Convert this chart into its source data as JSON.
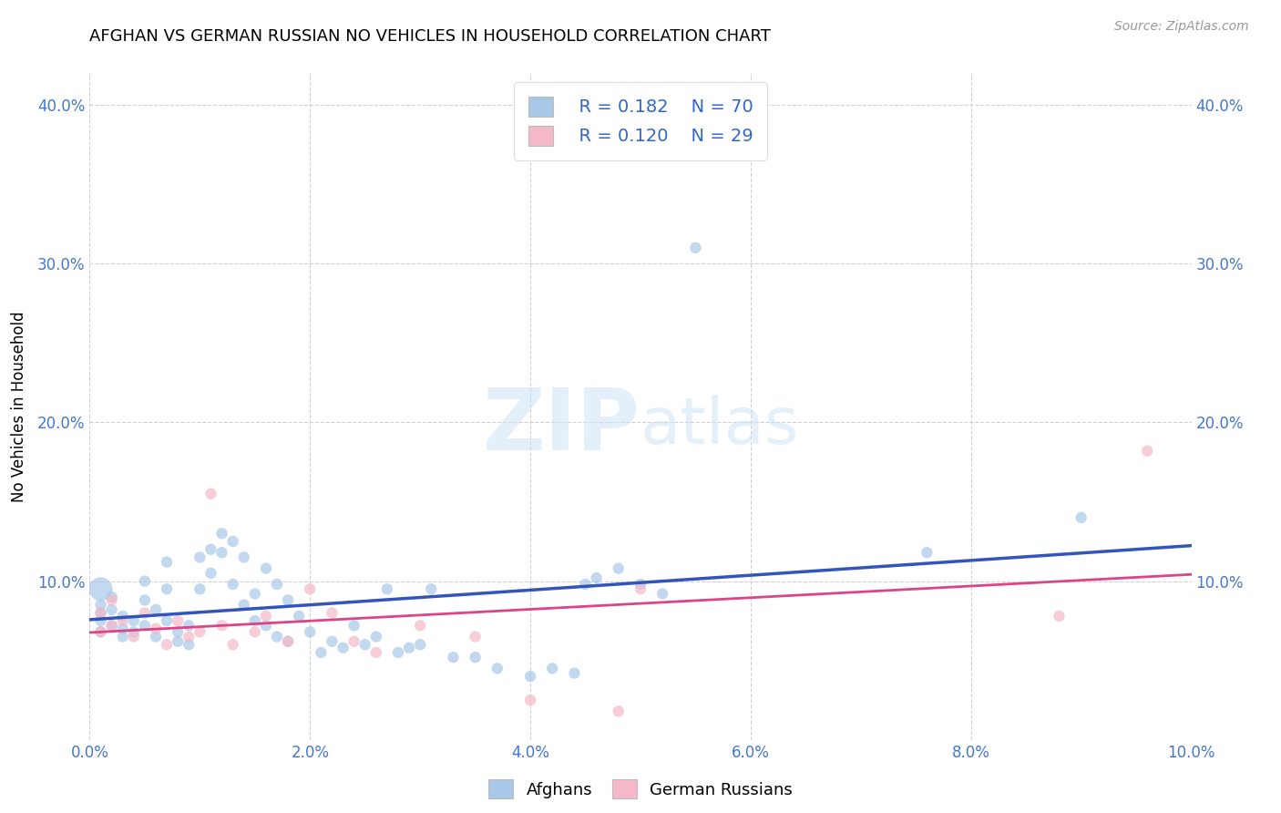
{
  "title": "AFGHAN VS GERMAN RUSSIAN NO VEHICLES IN HOUSEHOLD CORRELATION CHART",
  "source": "Source: ZipAtlas.com",
  "ylabel": "No Vehicles in Household",
  "xlim": [
    0.0,
    0.1
  ],
  "ylim": [
    0.0,
    0.42
  ],
  "x_ticks": [
    0.0,
    0.02,
    0.04,
    0.06,
    0.08,
    0.1
  ],
  "x_tick_labels": [
    "0.0%",
    "2.0%",
    "4.0%",
    "6.0%",
    "8.0%",
    "10.0%"
  ],
  "y_ticks": [
    0.1,
    0.2,
    0.3,
    0.4
  ],
  "y_tick_labels": [
    "10.0%",
    "20.0%",
    "30.0%",
    "40.0%"
  ],
  "legend_r1": "R = 0.182",
  "legend_n1": "N = 70",
  "legend_r2": "R = 0.120",
  "legend_n2": "N = 29",
  "afghans_color": "#a8c8e8",
  "german_russians_color": "#f5b8c8",
  "afghans_line_color": "#3355bb",
  "german_russians_line_color": "#dd4488",
  "background_color": "#ffffff",
  "afghans_x": [
    0.001,
    0.001,
    0.001,
    0.001,
    0.001,
    0.002,
    0.002,
    0.002,
    0.003,
    0.003,
    0.003,
    0.004,
    0.004,
    0.005,
    0.005,
    0.005,
    0.006,
    0.006,
    0.007,
    0.007,
    0.007,
    0.008,
    0.008,
    0.009,
    0.009,
    0.01,
    0.01,
    0.011,
    0.011,
    0.012,
    0.012,
    0.013,
    0.013,
    0.014,
    0.014,
    0.015,
    0.015,
    0.016,
    0.016,
    0.017,
    0.017,
    0.018,
    0.018,
    0.019,
    0.02,
    0.021,
    0.022,
    0.023,
    0.024,
    0.025,
    0.026,
    0.027,
    0.028,
    0.029,
    0.03,
    0.031,
    0.033,
    0.035,
    0.037,
    0.04,
    0.042,
    0.044,
    0.045,
    0.046,
    0.048,
    0.05,
    0.052,
    0.055,
    0.076,
    0.09
  ],
  "afghans_y": [
    0.095,
    0.085,
    0.08,
    0.075,
    0.068,
    0.09,
    0.082,
    0.072,
    0.078,
    0.07,
    0.065,
    0.075,
    0.068,
    0.1,
    0.088,
    0.072,
    0.082,
    0.065,
    0.112,
    0.095,
    0.075,
    0.068,
    0.062,
    0.072,
    0.06,
    0.115,
    0.095,
    0.12,
    0.105,
    0.13,
    0.118,
    0.125,
    0.098,
    0.115,
    0.085,
    0.092,
    0.075,
    0.108,
    0.072,
    0.098,
    0.065,
    0.088,
    0.062,
    0.078,
    0.068,
    0.055,
    0.062,
    0.058,
    0.072,
    0.06,
    0.065,
    0.095,
    0.055,
    0.058,
    0.06,
    0.095,
    0.052,
    0.052,
    0.045,
    0.04,
    0.045,
    0.042,
    0.098,
    0.102,
    0.108,
    0.098,
    0.092,
    0.31,
    0.118,
    0.14
  ],
  "afghans_sizes": [
    350,
    80,
    80,
    80,
    80,
    80,
    80,
    80,
    80,
    80,
    80,
    80,
    80,
    80,
    80,
    80,
    80,
    80,
    80,
    80,
    80,
    80,
    80,
    80,
    80,
    80,
    80,
    80,
    80,
    80,
    80,
    80,
    80,
    80,
    80,
    80,
    80,
    80,
    80,
    80,
    80,
    80,
    80,
    80,
    80,
    80,
    80,
    80,
    80,
    80,
    80,
    80,
    80,
    80,
    80,
    80,
    80,
    80,
    80,
    80,
    80,
    80,
    80,
    80,
    80,
    80,
    80,
    80,
    80,
    80
  ],
  "german_russians_x": [
    0.001,
    0.001,
    0.002,
    0.002,
    0.003,
    0.004,
    0.005,
    0.006,
    0.007,
    0.008,
    0.009,
    0.01,
    0.011,
    0.012,
    0.013,
    0.015,
    0.016,
    0.018,
    0.02,
    0.022,
    0.024,
    0.026,
    0.03,
    0.035,
    0.04,
    0.048,
    0.05,
    0.088,
    0.096
  ],
  "german_russians_y": [
    0.08,
    0.068,
    0.088,
    0.072,
    0.075,
    0.065,
    0.08,
    0.07,
    0.06,
    0.075,
    0.065,
    0.068,
    0.155,
    0.072,
    0.06,
    0.068,
    0.078,
    0.062,
    0.095,
    0.08,
    0.062,
    0.055,
    0.072,
    0.065,
    0.025,
    0.018,
    0.095,
    0.078,
    0.182
  ],
  "german_russians_sizes": [
    80,
    80,
    80,
    80,
    80,
    80,
    80,
    80,
    80,
    80,
    80,
    80,
    80,
    80,
    80,
    80,
    80,
    80,
    80,
    80,
    80,
    80,
    80,
    80,
    80,
    80,
    80,
    80,
    80
  ]
}
